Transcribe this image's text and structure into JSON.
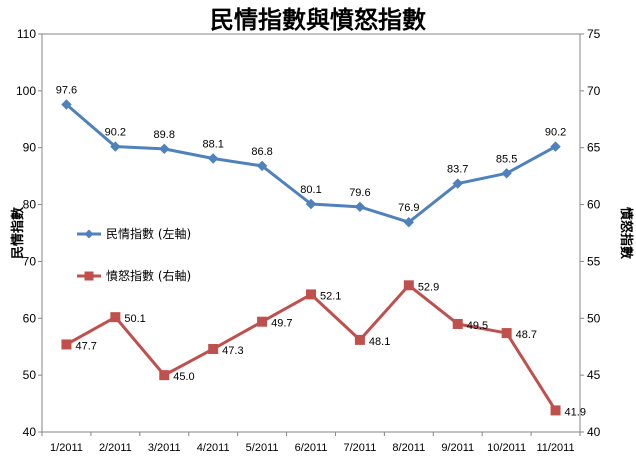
{
  "chart_data": {
    "type": "line",
    "title": "民情指數與憤怒指數",
    "categories": [
      "1/2011",
      "2/2011",
      "3/2011",
      "4/2011",
      "5/2011",
      "6/2011",
      "7/2011",
      "8/2011",
      "9/2011",
      "10/2011",
      "11/2011"
    ],
    "y_left": {
      "label": "民情指數",
      "min": 40,
      "max": 110,
      "step": 10
    },
    "y_right": {
      "label": "憤怒指數",
      "min": 40,
      "max": 75,
      "step": 5
    },
    "grid": false,
    "legend_position": "left",
    "series": [
      {
        "name": "民情指數 (左軸)",
        "axis": "left",
        "color": "#4f81bd",
        "marker": "diamond",
        "values": [
          97.6,
          90.2,
          89.8,
          88.1,
          86.8,
          80.1,
          79.6,
          76.9,
          83.7,
          85.5,
          90.2
        ]
      },
      {
        "name": "憤怒指數 (右軸)",
        "axis": "right",
        "color": "#c0504d",
        "marker": "square",
        "values": [
          47.7,
          50.1,
          45.0,
          47.3,
          49.7,
          52.1,
          48.1,
          52.9,
          49.5,
          48.7,
          41.9
        ]
      }
    ]
  }
}
